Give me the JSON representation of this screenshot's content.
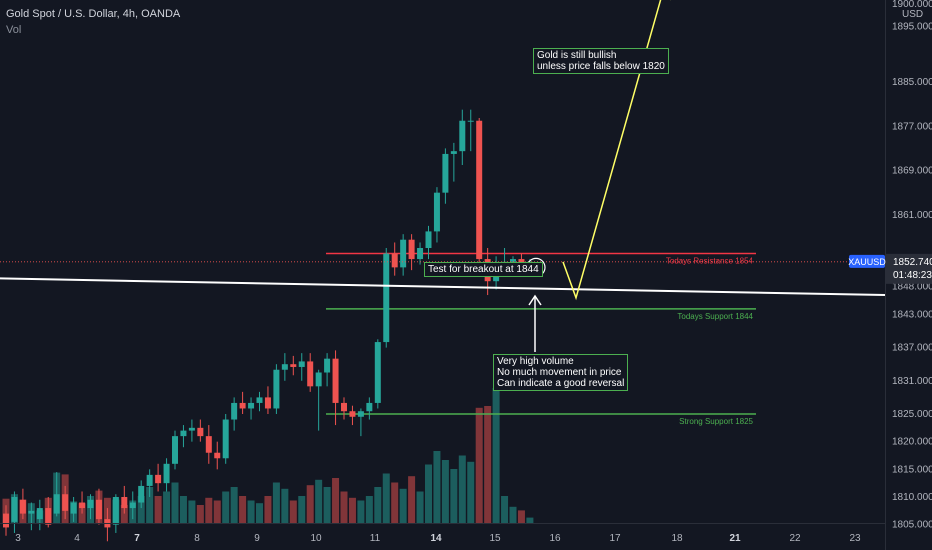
{
  "header": {
    "title": "Gold Spot / U.S. Dollar, 4h, OANDA",
    "volume_label": "Vol"
  },
  "price_axis": {
    "currency": "USD",
    "ticks": [
      "1900.000",
      "1895.000",
      "1885.000",
      "1877.000",
      "1869.000",
      "1861.000",
      "1848.000",
      "1843.000",
      "1837.000",
      "1831.000",
      "1825.000",
      "1820.000",
      "1815.000",
      "1810.000",
      "1805.000"
    ],
    "symbol": "XAUUSD",
    "last_price": "1852.740",
    "countdown": "01:48:23"
  },
  "time_axis": {
    "ticks": [
      "3",
      "4",
      "7",
      "8",
      "9",
      "10",
      "11",
      "14",
      "15",
      "16",
      "17",
      "18",
      "21",
      "22",
      "23"
    ],
    "bold": [
      "7",
      "14",
      "21"
    ]
  },
  "colors": {
    "background": "#131722",
    "up": "#26a69a",
    "down": "#ef5350",
    "resistance": "#f23645",
    "support": "#4caf50",
    "trendline": "#ffffff",
    "projection": "#ffff66",
    "axis_text": "#b2b5be",
    "price_label_bg": "#2a2e39"
  },
  "levels": [
    {
      "name": "resistance",
      "label": "Todays Resistance 1854",
      "price": 1854
    },
    {
      "name": "support-today",
      "label": "Todays Support 1844",
      "price": 1844
    },
    {
      "name": "support-strong",
      "label": "Strong Support 1825",
      "price": 1825
    }
  ],
  "annotations": {
    "bullish": [
      "Gold is still bullish",
      "unless price falls below 1820"
    ],
    "breakout": [
      "Test for breakout at 1844"
    ],
    "volume": [
      "Very high volume",
      "No much movement in price",
      "Can indicate a good reversal"
    ]
  },
  "chart_data": {
    "type": "candlestick",
    "title": "Gold Spot / U.S. Dollar, 4h, OANDA",
    "ylabel": "USD",
    "ylim": [
      1805,
      1902
    ],
    "projection_path": [
      1852.5,
      1846,
      1902
    ],
    "trendline": [
      1849.5,
      1846.5
    ],
    "candles": [
      {
        "o": 1807.0,
        "h": 1808.5,
        "l": 1803.0,
        "c": 1804.5,
        "v": 27
      },
      {
        "o": 1805.5,
        "h": 1811.0,
        "l": 1803.5,
        "c": 1810.0,
        "v": 32
      },
      {
        "o": 1809.5,
        "h": 1811.5,
        "l": 1806.0,
        "c": 1807.0,
        "v": 26
      },
      {
        "o": 1807.0,
        "h": 1809.0,
        "l": 1804.0,
        "c": 1807.5,
        "v": 22
      },
      {
        "o": 1806.0,
        "h": 1809.5,
        "l": 1804.0,
        "c": 1808.0,
        "v": 14
      },
      {
        "o": 1808.0,
        "h": 1810.0,
        "l": 1804.5,
        "c": 1805.0,
        "v": 28
      },
      {
        "o": 1807.0,
        "h": 1814.5,
        "l": 1806.5,
        "c": 1810.5,
        "v": 56
      },
      {
        "o": 1810.5,
        "h": 1812.0,
        "l": 1806.0,
        "c": 1807.5,
        "v": 54
      },
      {
        "o": 1807.0,
        "h": 1810.0,
        "l": 1805.5,
        "c": 1809.0,
        "v": 24
      },
      {
        "o": 1809.0,
        "h": 1811.0,
        "l": 1807.0,
        "c": 1808.0,
        "v": 22
      },
      {
        "o": 1808.0,
        "h": 1810.5,
        "l": 1806.0,
        "c": 1809.5,
        "v": 30
      },
      {
        "o": 1809.5,
        "h": 1811.5,
        "l": 1805.0,
        "c": 1806.0,
        "v": 36
      },
      {
        "o": 1806.0,
        "h": 1808.0,
        "l": 1802.0,
        "c": 1804.5,
        "v": 28
      },
      {
        "o": 1805.0,
        "h": 1810.5,
        "l": 1803.5,
        "c": 1810.0,
        "v": 26
      },
      {
        "o": 1810.0,
        "h": 1812.0,
        "l": 1807.0,
        "c": 1808.0,
        "v": 20
      },
      {
        "o": 1808.0,
        "h": 1811.0,
        "l": 1806.0,
        "c": 1809.0,
        "v": 25
      },
      {
        "o": 1809.0,
        "h": 1813.0,
        "l": 1808.0,
        "c": 1812.0,
        "v": 30
      },
      {
        "o": 1812.0,
        "h": 1815.0,
        "l": 1810.0,
        "c": 1814.0,
        "v": 40
      },
      {
        "o": 1814.0,
        "h": 1816.0,
        "l": 1811.0,
        "c": 1812.5,
        "v": 30
      },
      {
        "o": 1812.5,
        "h": 1817.0,
        "l": 1811.0,
        "c": 1816.0,
        "v": 35
      },
      {
        "o": 1816.0,
        "h": 1822.0,
        "l": 1815.0,
        "c": 1821.0,
        "v": 45
      },
      {
        "o": 1821.0,
        "h": 1823.0,
        "l": 1819.0,
        "c": 1822.0,
        "v": 30
      },
      {
        "o": 1822.0,
        "h": 1824.0,
        "l": 1820.0,
        "c": 1822.5,
        "v": 25
      },
      {
        "o": 1822.5,
        "h": 1824.0,
        "l": 1820.0,
        "c": 1821.0,
        "v": 20
      },
      {
        "o": 1821.0,
        "h": 1823.0,
        "l": 1816.0,
        "c": 1818.0,
        "v": 28
      },
      {
        "o": 1818.0,
        "h": 1820.0,
        "l": 1815.0,
        "c": 1817.0,
        "v": 25
      },
      {
        "o": 1817.0,
        "h": 1825.0,
        "l": 1816.0,
        "c": 1824.0,
        "v": 35
      },
      {
        "o": 1824.0,
        "h": 1828.0,
        "l": 1822.0,
        "c": 1827.0,
        "v": 40
      },
      {
        "o": 1827.0,
        "h": 1829.0,
        "l": 1825.0,
        "c": 1826.0,
        "v": 30
      },
      {
        "o": 1826.0,
        "h": 1828.0,
        "l": 1824.0,
        "c": 1827.0,
        "v": 25
      },
      {
        "o": 1827.0,
        "h": 1829.0,
        "l": 1825.5,
        "c": 1828.0,
        "v": 22
      },
      {
        "o": 1828.0,
        "h": 1830.0,
        "l": 1825.0,
        "c": 1826.0,
        "v": 30
      },
      {
        "o": 1826.0,
        "h": 1834.0,
        "l": 1825.0,
        "c": 1833.0,
        "v": 45
      },
      {
        "o": 1833.0,
        "h": 1836.0,
        "l": 1831.0,
        "c": 1834.0,
        "v": 38
      },
      {
        "o": 1834.0,
        "h": 1835.5,
        "l": 1832.0,
        "c": 1833.5,
        "v": 25
      },
      {
        "o": 1833.5,
        "h": 1836.0,
        "l": 1831.0,
        "c": 1834.5,
        "v": 30
      },
      {
        "o": 1834.5,
        "h": 1836.0,
        "l": 1829.0,
        "c": 1830.0,
        "v": 42
      },
      {
        "o": 1830.0,
        "h": 1833.0,
        "l": 1822.0,
        "c": 1832.5,
        "v": 48
      },
      {
        "o": 1832.5,
        "h": 1836.0,
        "l": 1830.0,
        "c": 1835.0,
        "v": 40
      },
      {
        "o": 1835.0,
        "h": 1836.5,
        "l": 1823.0,
        "c": 1827.0,
        "v": 50
      },
      {
        "o": 1827.0,
        "h": 1828.0,
        "l": 1824.0,
        "c": 1825.5,
        "v": 35
      },
      {
        "o": 1825.5,
        "h": 1826.5,
        "l": 1823.0,
        "c": 1824.5,
        "v": 28
      },
      {
        "o": 1824.5,
        "h": 1826.0,
        "l": 1821.0,
        "c": 1825.5,
        "v": 25
      },
      {
        "o": 1825.5,
        "h": 1828.0,
        "l": 1824.0,
        "c": 1827.0,
        "v": 30
      },
      {
        "o": 1827.0,
        "h": 1838.5,
        "l": 1826.0,
        "c": 1838.0,
        "v": 40
      },
      {
        "o": 1838.0,
        "h": 1855.0,
        "l": 1837.0,
        "c": 1854.0,
        "v": 55
      },
      {
        "o": 1854.0,
        "h": 1856.0,
        "l": 1850.0,
        "c": 1851.5,
        "v": 45
      },
      {
        "o": 1851.5,
        "h": 1857.5,
        "l": 1850.0,
        "c": 1856.5,
        "v": 38
      },
      {
        "o": 1856.5,
        "h": 1857.5,
        "l": 1851.0,
        "c": 1853.0,
        "v": 52
      },
      {
        "o": 1853.0,
        "h": 1856.0,
        "l": 1852.0,
        "c": 1855.0,
        "v": 35
      },
      {
        "o": 1855.0,
        "h": 1859.0,
        "l": 1853.0,
        "c": 1858.0,
        "v": 65
      },
      {
        "o": 1858.0,
        "h": 1866.0,
        "l": 1856.0,
        "c": 1865.0,
        "v": 80
      },
      {
        "o": 1865.0,
        "h": 1873.0,
        "l": 1863.0,
        "c": 1872.0,
        "v": 70
      },
      {
        "o": 1872.0,
        "h": 1874.0,
        "l": 1867.0,
        "c": 1872.5,
        "v": 60
      },
      {
        "o": 1872.5,
        "h": 1880.0,
        "l": 1870.0,
        "c": 1878.0,
        "v": 75
      },
      {
        "o": 1878.0,
        "h": 1880.0,
        "l": 1872.5,
        "c": 1878.0,
        "v": 68
      },
      {
        "o": 1878.0,
        "h": 1878.5,
        "l": 1852.0,
        "c": 1853.0,
        "v": 128
      },
      {
        "o": 1853.0,
        "h": 1855.0,
        "l": 1846.5,
        "c": 1849.0,
        "v": 130
      },
      {
        "o": 1849.0,
        "h": 1853.5,
        "l": 1847.5,
        "c": 1852.0,
        "v": 150
      },
      {
        "o": 1852.0,
        "h": 1855.0,
        "l": 1851.0,
        "c": 1852.5,
        "v": 30
      },
      {
        "o": 1852.5,
        "h": 1853.5,
        "l": 1851.5,
        "c": 1853.0,
        "v": 18
      },
      {
        "o": 1853.0,
        "h": 1854.0,
        "l": 1851.5,
        "c": 1852.0,
        "v": 14
      },
      {
        "o": 1852.0,
        "h": 1853.0,
        "l": 1851.5,
        "c": 1852.5,
        "v": 6
      }
    ]
  }
}
